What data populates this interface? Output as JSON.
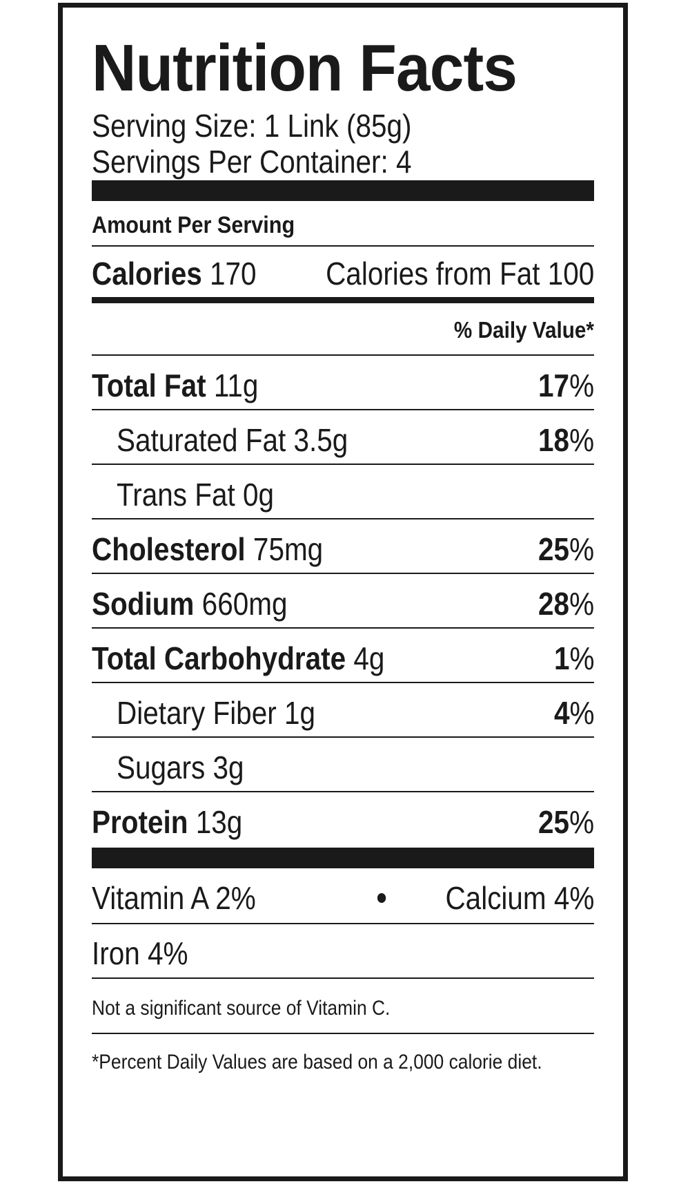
{
  "title": "Nutrition Facts",
  "serving_size": "Serving Size: 1 Link (85g)",
  "servings_per_container": "Servings Per Container: 4",
  "amount_per_serving": "Amount Per Serving",
  "calories": {
    "label": "Calories",
    "value": "170",
    "from_fat_label": "Calories from Fat",
    "from_fat_value": "100"
  },
  "daily_value_header": "% Daily Value*",
  "nutrients": [
    {
      "name": "Total Fat",
      "amount": "11g",
      "pct_num": "17",
      "pct_sign": "%"
    },
    {
      "name": "Saturated Fat",
      "amount": "3.5g",
      "pct_num": "18",
      "pct_sign": "%"
    },
    {
      "name": "Trans Fat",
      "amount": "0g",
      "pct_num": "",
      "pct_sign": ""
    },
    {
      "name": "Cholesterol",
      "amount": "75mg",
      "pct_num": "25",
      "pct_sign": "%"
    },
    {
      "name": "Sodium",
      "amount": "660mg",
      "pct_num": "28",
      "pct_sign": "%"
    },
    {
      "name": "Total Carbohydrate",
      "amount": "4g",
      "pct_num": "1",
      "pct_sign": "%"
    },
    {
      "name": "Dietary Fiber",
      "amount": "1g",
      "pct_num": "4",
      "pct_sign": "%"
    },
    {
      "name": "Sugars",
      "amount": "3g",
      "pct_num": "",
      "pct_sign": ""
    },
    {
      "name": "Protein",
      "amount": "13g",
      "pct_num": "25",
      "pct_sign": "%"
    }
  ],
  "vitamins": {
    "vitamin_a": "Vitamin A 2%",
    "calcium": "Calcium 4%",
    "iron": "Iron 4%"
  },
  "footnotes": {
    "vitamin_c": "Not a significant source of Vitamin C.",
    "percent_dv": "*Percent Daily Values are based on a 2,000 calorie diet."
  }
}
